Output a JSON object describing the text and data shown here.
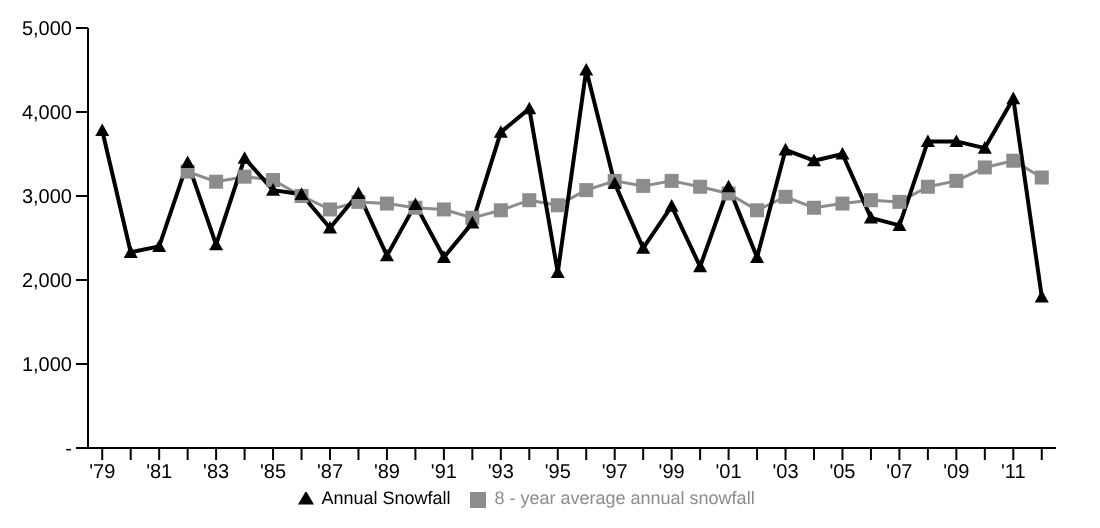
{
  "chart_data": {
    "type": "line",
    "categories": [
      "'79",
      null,
      "'81",
      null,
      "'83",
      null,
      "'85",
      null,
      "'87",
      null,
      "'89",
      null,
      "'91",
      null,
      "'93",
      null,
      "'95",
      null,
      "'97",
      null,
      "'99",
      null,
      "'01",
      null,
      "'03",
      null,
      "'05",
      null,
      "'07",
      null,
      "'09",
      null,
      "'11",
      null
    ],
    "ylim": [
      0,
      5000
    ],
    "yticks": [
      {
        "value": 0,
        "label": "-"
      },
      {
        "value": 1000,
        "label": "1,000"
      },
      {
        "value": 2000,
        "label": "2,000"
      },
      {
        "value": 3000,
        "label": "3,000"
      },
      {
        "value": 4000,
        "label": "4,000"
      },
      {
        "value": 5000,
        "label": "5,000"
      }
    ],
    "grid": false,
    "legend": "bottom",
    "series": [
      {
        "name": "Annual Snowfall",
        "color": "#000000",
        "marker": "triangle",
        "values": [
          3780,
          2330,
          2400,
          3400,
          2420,
          3450,
          3070,
          3020,
          2620,
          3030,
          2290,
          2900,
          2270,
          2680,
          3760,
          4040,
          2090,
          4500,
          3150,
          2380,
          2880,
          2160,
          3110,
          2270,
          3550,
          3420,
          3500,
          2740,
          2650,
          3650,
          3650,
          3570,
          4160,
          1800
        ]
      },
      {
        "name": "8 - year average annual snowfall",
        "color": "#8c8c8c",
        "marker": "square",
        "values": [
          null,
          null,
          null,
          3290,
          3170,
          3230,
          3190,
          3000,
          2840,
          2930,
          2910,
          2860,
          2840,
          2740,
          2830,
          2950,
          2890,
          3070,
          3180,
          3120,
          3180,
          3110,
          3030,
          2830,
          2990,
          2860,
          2910,
          2950,
          2930,
          3110,
          3180,
          3340,
          3420,
          3220
        ]
      }
    ]
  }
}
